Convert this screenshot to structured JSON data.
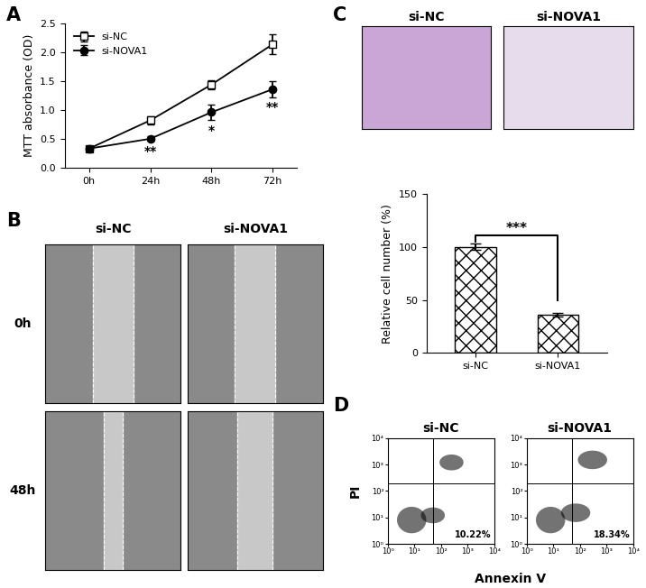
{
  "chart_data": [
    {
      "type": "line",
      "title": "A",
      "y_label": "MTT absorbance (OD)",
      "categories": [
        "0h",
        "24h",
        "48h",
        "72h"
      ],
      "series": [
        {
          "name": "si-NC",
          "color": "#000000",
          "marker": "open_square",
          "values": [
            0.33,
            0.82,
            1.44,
            2.14
          ],
          "errors": [
            0.02,
            0.07,
            0.08,
            0.17
          ]
        },
        {
          "name": "si-NOVA1",
          "color": "#000000",
          "marker": "circle",
          "values": [
            0.33,
            0.5,
            0.96,
            1.36
          ],
          "errors": [
            0.02,
            0.04,
            0.14,
            0.14
          ]
        }
      ],
      "ylim": [
        0,
        2.5
      ],
      "yticks": [
        {
          "value": 0,
          "label": "0.0"
        },
        0.5,
        {
          "value": 1,
          "label": "1.0"
        },
        1.5,
        {
          "value": 2,
          "label": "2.0"
        },
        2.5
      ],
      "legend": "upper left",
      "annotations": [
        {
          "series": "si-NOVA1",
          "category": "24h",
          "text": "**"
        },
        {
          "series": "si-NOVA1",
          "category": "48h",
          "text": "*"
        },
        {
          "series": "si-NOVA1",
          "category": "72h",
          "text": "**"
        }
      ]
    },
    {
      "type": "image",
      "title": "B",
      "columns": [
        "si-NC",
        "si-NOVA1"
      ],
      "rows": [
        "0h",
        "48h"
      ]
    },
    {
      "type": "image",
      "title": "C",
      "columns": [
        "si-NC",
        "si-NOVA1"
      ]
    },
    {
      "type": "bar",
      "y_label": "Relative cell number (%)",
      "categories": [
        "si-NC",
        "si-NOVA1"
      ],
      "values": [
        100,
        36
      ],
      "errors": [
        3,
        2
      ],
      "color": "#ffffff",
      "ylim": [
        0,
        150
      ],
      "yticks": [
        0,
        50,
        100,
        150
      ],
      "annotations": [
        {
          "text": "***"
        }
      ]
    },
    {
      "type": "scatter",
      "title": "D",
      "x_label": "Annexin V",
      "y_label": "PI",
      "log": true,
      "color": "#000000",
      "xlim": [
        1,
        10000
      ],
      "ylim": [
        1,
        10000
      ],
      "xticks": [
        {
          "value": 1,
          "label": "10⁰"
        },
        {
          "value": 10,
          "label": "10¹"
        },
        {
          "value": 100,
          "label": "10²"
        },
        {
          "value": 1000,
          "label": "10³"
        },
        {
          "value": 10000,
          "label": "10⁴"
        }
      ],
      "yticks": [
        {
          "value": 1,
          "label": "10⁰"
        },
        {
          "value": 10,
          "label": "10¹"
        },
        {
          "value": 100,
          "label": "10²"
        },
        {
          "value": 1000,
          "label": "10³"
        },
        {
          "value": 10000,
          "label": "10⁴"
        }
      ],
      "gates": {
        "x": 50,
        "y": 200
      },
      "panels": [
        {
          "name": "si-NC",
          "value": 10.22,
          "value_label": "10.22%",
          "populations": [
            {
              "x": 8,
              "y": 8,
              "x_spread": 0.55,
              "y_spread": 0.5
            },
            {
              "x": 50,
              "y": 12,
              "x_spread": 0.45,
              "y_spread": 0.3
            },
            {
              "x": 250,
              "y": 1200,
              "x_spread": 0.45,
              "y_spread": 0.3
            }
          ]
        },
        {
          "name": "si-NOVA1",
          "value": 18.34,
          "value_label": "18.34%",
          "populations": [
            {
              "x": 8,
              "y": 8,
              "x_spread": 0.55,
              "y_spread": 0.5
            },
            {
              "x": 70,
              "y": 15,
              "x_spread": 0.55,
              "y_spread": 0.35
            },
            {
              "x": 300,
              "y": 1500,
              "x_spread": 0.55,
              "y_spread": 0.35
            }
          ]
        }
      ]
    }
  ]
}
